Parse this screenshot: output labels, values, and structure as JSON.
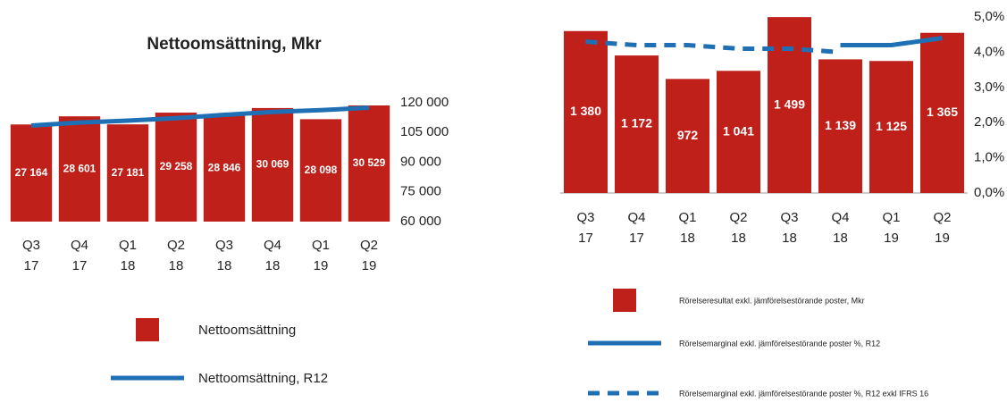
{
  "chart_data": [
    {
      "type": "bar",
      "title": "Nettoomsättning, Mkr",
      "categories": [
        [
          "Q3",
          "17"
        ],
        [
          "Q4",
          "17"
        ],
        [
          "Q1",
          "18"
        ],
        [
          "Q2",
          "18"
        ],
        [
          "Q3",
          "18"
        ],
        [
          "Q4",
          "18"
        ],
        [
          "Q1",
          "19"
        ],
        [
          "Q2",
          "19"
        ]
      ],
      "series": [
        {
          "name": "Nettoomsättning",
          "color": "#c0201a",
          "values": [
            27164,
            28601,
            27181,
            29258,
            28846,
            30069,
            28098,
            30529
          ],
          "value_labels": [
            "27 164",
            "28 601",
            "27 181",
            "29 258",
            "28 846",
            "30 069",
            "28 098",
            "30 529"
          ]
        },
        {
          "name": "Nettoomsättning, R12",
          "color": "#1f6fb5",
          "axis": "y2",
          "dashed": false,
          "values": [
            108500,
            110000,
            111000,
            112204,
            113886,
            115354,
            116271,
            117542
          ]
        }
      ],
      "ylim": [
        10000,
        31000
      ],
      "y2lim": [
        60000,
        120000
      ],
      "y2ticks": [
        {
          "value": 60000,
          "label": "60 000"
        },
        {
          "value": 75000,
          "label": "75 000"
        },
        {
          "value": 90000,
          "label": "90 000"
        },
        {
          "value": 105000,
          "label": "105 000"
        },
        {
          "value": 120000,
          "label": "120 000"
        }
      ]
    },
    {
      "type": "bar",
      "categories": [
        [
          "Q3",
          "17"
        ],
        [
          "Q4",
          "17"
        ],
        [
          "Q1",
          "18"
        ],
        [
          "Q2",
          "18"
        ],
        [
          "Q3",
          "18"
        ],
        [
          "Q4",
          "18"
        ],
        [
          "Q1",
          "19"
        ],
        [
          "Q2",
          "19"
        ]
      ],
      "series": [
        {
          "name": "Rörelseresultat exkl. jämförelsestörande poster, Mkr",
          "color": "#c0201a",
          "values": [
            1380,
            1172,
            972,
            1041,
            1499,
            1139,
            1125,
            1365
          ],
          "value_labels": [
            "1 380",
            "1 172",
            "972",
            "1 041",
            "1 499",
            "1 139",
            "1 125",
            "1 365"
          ]
        },
        {
          "name": "Rörelsemarginal exkl. jämförelsestörande poster %, R12",
          "color": "#1f6fb5",
          "axis": "y2",
          "dashed": false,
          "values": [
            null,
            null,
            null,
            null,
            null,
            4.2,
            4.2,
            4.4
          ]
        },
        {
          "name": "Rörelsemarginal exkl. jämförelsestörande poster %, R12 exkl IFRS 16",
          "color": "#1f6fb5",
          "axis": "y2",
          "dashed": true,
          "values": [
            4.3,
            4.2,
            4.2,
            4.1,
            4.1,
            4.0,
            null,
            null
          ]
        }
      ],
      "ylim": [
        0,
        1500
      ],
      "y2lim": [
        0,
        5
      ],
      "y2ticks": [
        {
          "value": 0,
          "label": "0,0%"
        },
        {
          "value": 1,
          "label": "1,0%"
        },
        {
          "value": 2,
          "label": "2,0%"
        },
        {
          "value": 3,
          "label": "3,0%"
        },
        {
          "value": 4,
          "label": "4,0%"
        },
        {
          "value": 5,
          "label": "5,0%"
        }
      ]
    }
  ]
}
